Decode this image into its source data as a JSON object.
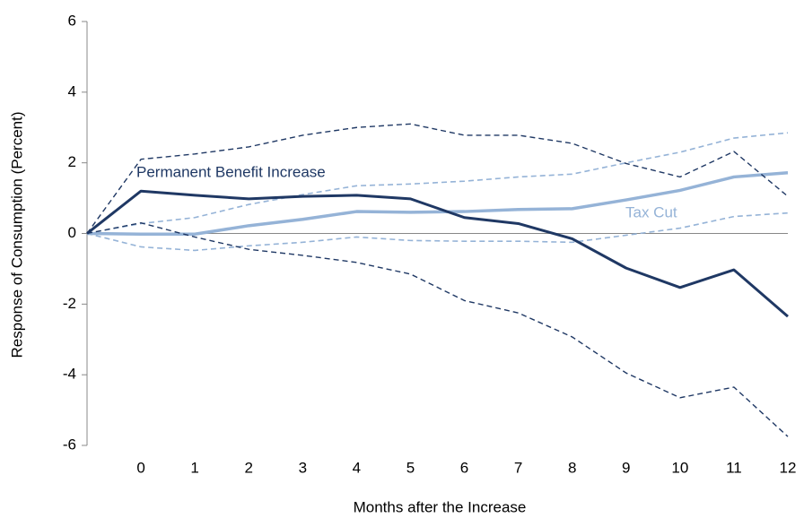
{
  "chart_data": {
    "type": "line",
    "xlabel": "Months after the Increase",
    "ylabel": "Response of Consumption (Percent)",
    "x": [
      -1,
      0,
      1,
      2,
      3,
      4,
      5,
      6,
      7,
      8,
      9,
      10,
      11,
      12
    ],
    "xlim": [
      -1,
      12
    ],
    "xticks": [
      0,
      1,
      2,
      3,
      4,
      5,
      6,
      7,
      8,
      9,
      10,
      11,
      12
    ],
    "ylim": [
      -6,
      6
    ],
    "yticks": [
      -6,
      -4,
      -2,
      0,
      2,
      4,
      6
    ],
    "series": [
      {
        "color": "#95b3d7",
        "dashed": true,
        "width": 1.6,
        "values": [
          0,
          0.28,
          0.45,
          0.82,
          1.1,
          1.35,
          1.4,
          1.48,
          1.6,
          1.68,
          2.0,
          2.3,
          2.7,
          2.85
        ]
      },
      {
        "color": "#95b3d7",
        "dashed": true,
        "width": 1.6,
        "values": [
          0,
          -0.38,
          -0.48,
          -0.35,
          -0.25,
          -0.1,
          -0.2,
          -0.22,
          -0.22,
          -0.25,
          -0.05,
          0.15,
          0.48,
          0.58
        ]
      },
      {
        "name": "Tax Cut",
        "color": "#95b3d7",
        "dashed": false,
        "width": 3.5,
        "values": [
          0,
          -0.02,
          -0.02,
          0.22,
          0.4,
          0.62,
          0.6,
          0.62,
          0.68,
          0.7,
          0.95,
          1.22,
          1.6,
          1.72
        ]
      },
      {
        "color": "#1f3864",
        "dashed": true,
        "width": 1.4,
        "values": [
          0,
          2.1,
          2.25,
          2.45,
          2.78,
          3.0,
          3.1,
          2.78,
          2.78,
          2.55,
          1.98,
          1.6,
          2.32,
          1.05
        ]
      },
      {
        "color": "#1f3864",
        "dashed": true,
        "width": 1.4,
        "values": [
          0,
          0.3,
          -0.1,
          -0.45,
          -0.62,
          -0.82,
          -1.15,
          -1.9,
          -2.25,
          -2.93,
          -3.95,
          -4.65,
          -4.35,
          -5.75
        ]
      },
      {
        "name": "Permanent Benefit Increase",
        "color": "#1f3864",
        "dashed": false,
        "width": 3,
        "values": [
          0,
          1.2,
          1.08,
          0.98,
          1.05,
          1.08,
          0.98,
          0.45,
          0.28,
          -0.15,
          -0.98,
          -1.53,
          -1.03,
          -2.35
        ]
      }
    ]
  }
}
